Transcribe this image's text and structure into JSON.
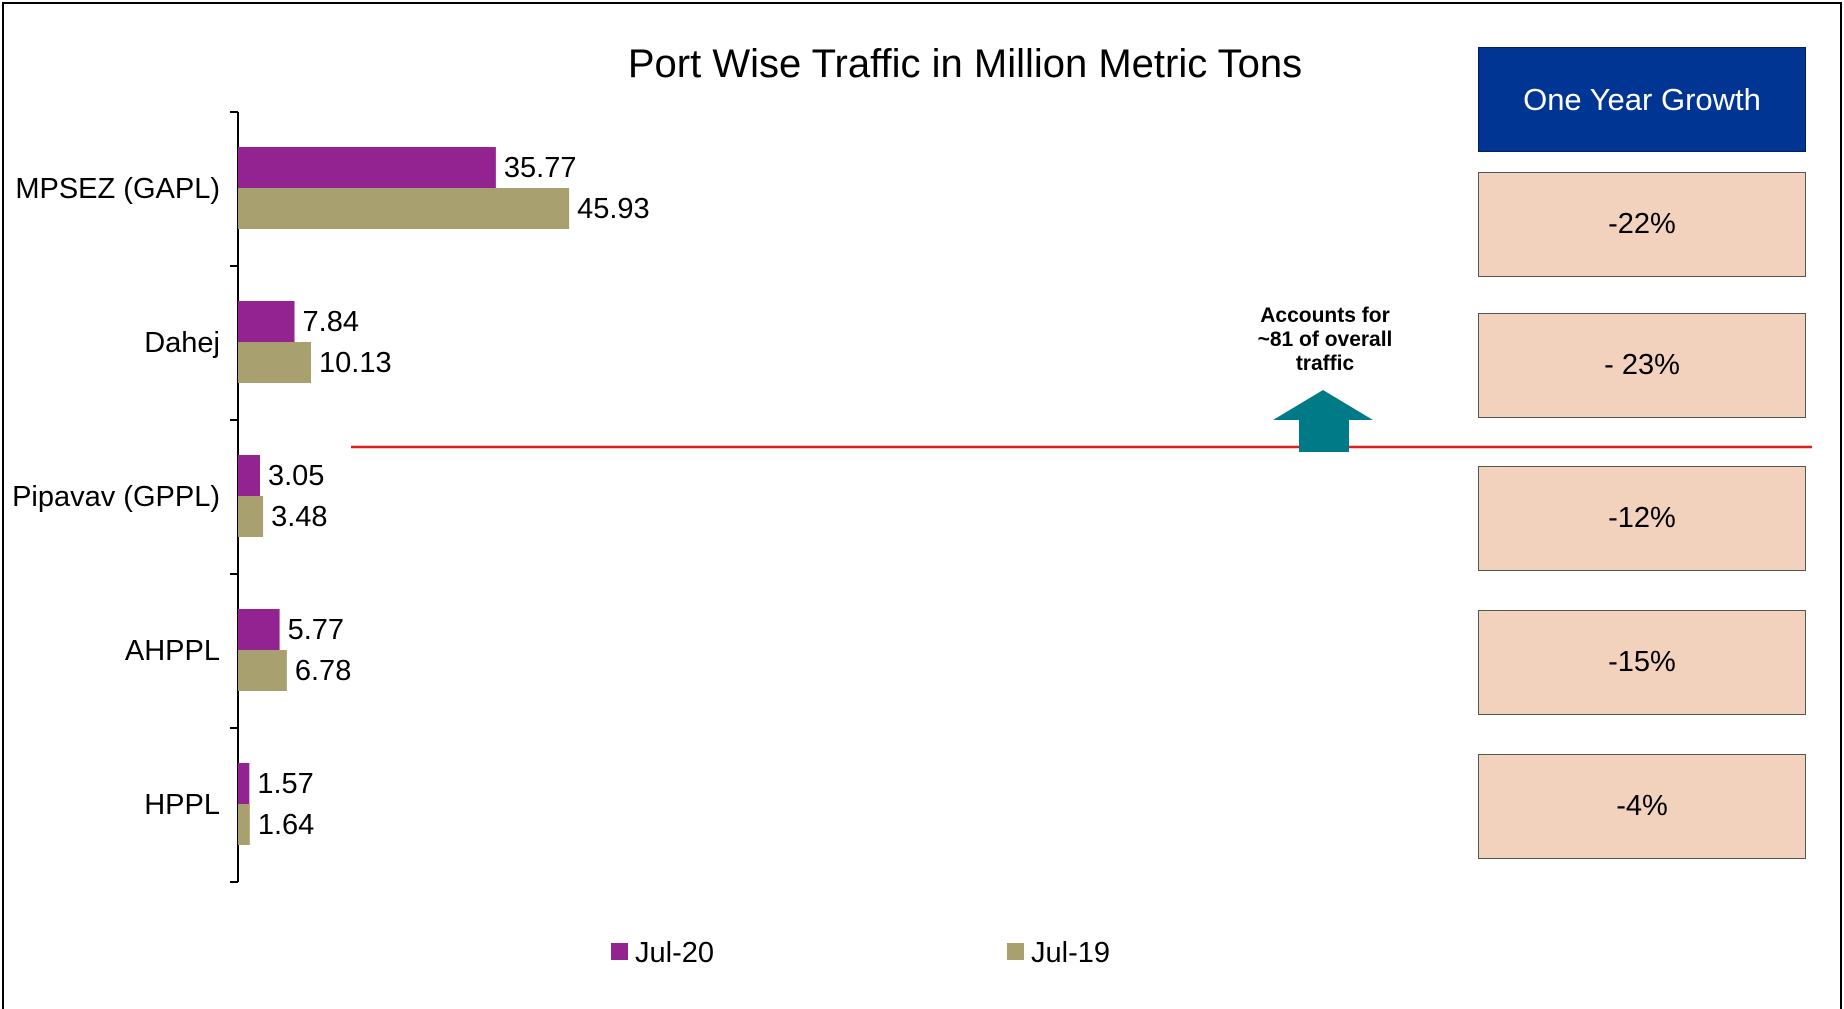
{
  "chart_data": {
    "type": "bar",
    "orientation": "horizontal",
    "title": "Port Wise Traffic in Million Metric Tons",
    "categories": [
      "MPSEZ (GAPL)",
      "Dahej",
      "Pipavav (GPPL)",
      "AHPPL",
      "HPPL"
    ],
    "series": [
      {
        "name": "Jul-20",
        "color": "#922390",
        "values": [
          35.77,
          7.84,
          3.05,
          5.77,
          1.57
        ]
      },
      {
        "name": "Jul-19",
        "color": "#a8a06f",
        "values": [
          45.93,
          10.13,
          3.48,
          6.78,
          1.64
        ]
      }
    ],
    "xlim": [
      0,
      215
    ],
    "legend_position": "bottom",
    "grid": false
  },
  "growth": {
    "header": "One Year Growth",
    "values": [
      "-22%",
      "- 23%",
      "-12%",
      "-15%",
      "-4%"
    ]
  },
  "annotation": {
    "lines": [
      "Accounts for",
      "~81 of overall",
      "traffic"
    ],
    "arrow_color": "#007a86",
    "line_color": "#e31d1d"
  }
}
